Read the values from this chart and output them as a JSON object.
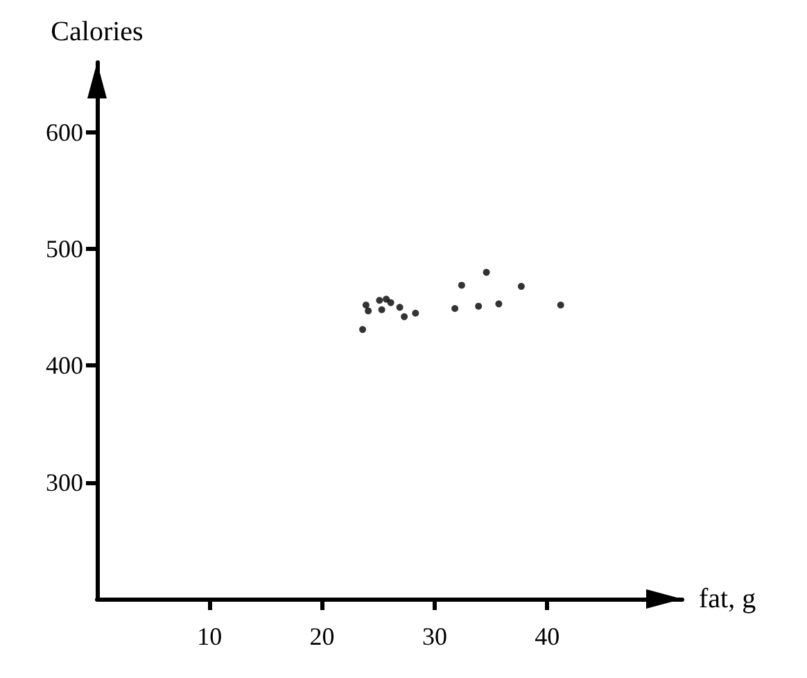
{
  "chart_data": {
    "type": "scatter",
    "xlabel": "fat, g",
    "ylabel": "Calories",
    "x": [
      23.6,
      23.9,
      24.1,
      25.1,
      25.7,
      26.1,
      25.3,
      26.9,
      27.3,
      28.3,
      31.8,
      32.4,
      33.9,
      34.6,
      35.7,
      37.7,
      41.2
    ],
    "values": [
      431,
      452,
      447,
      456,
      457,
      454,
      448,
      450,
      442,
      445,
      449,
      469,
      451,
      480,
      453,
      468,
      452
    ],
    "color": "#000000",
    "marker": "circle",
    "xlim": [
      0,
      52
    ],
    "xticks": [
      10,
      20,
      30,
      40
    ],
    "ylim": [
      200,
      660
    ],
    "yticks": [
      300,
      400,
      500,
      600
    ],
    "grid": false
  }
}
